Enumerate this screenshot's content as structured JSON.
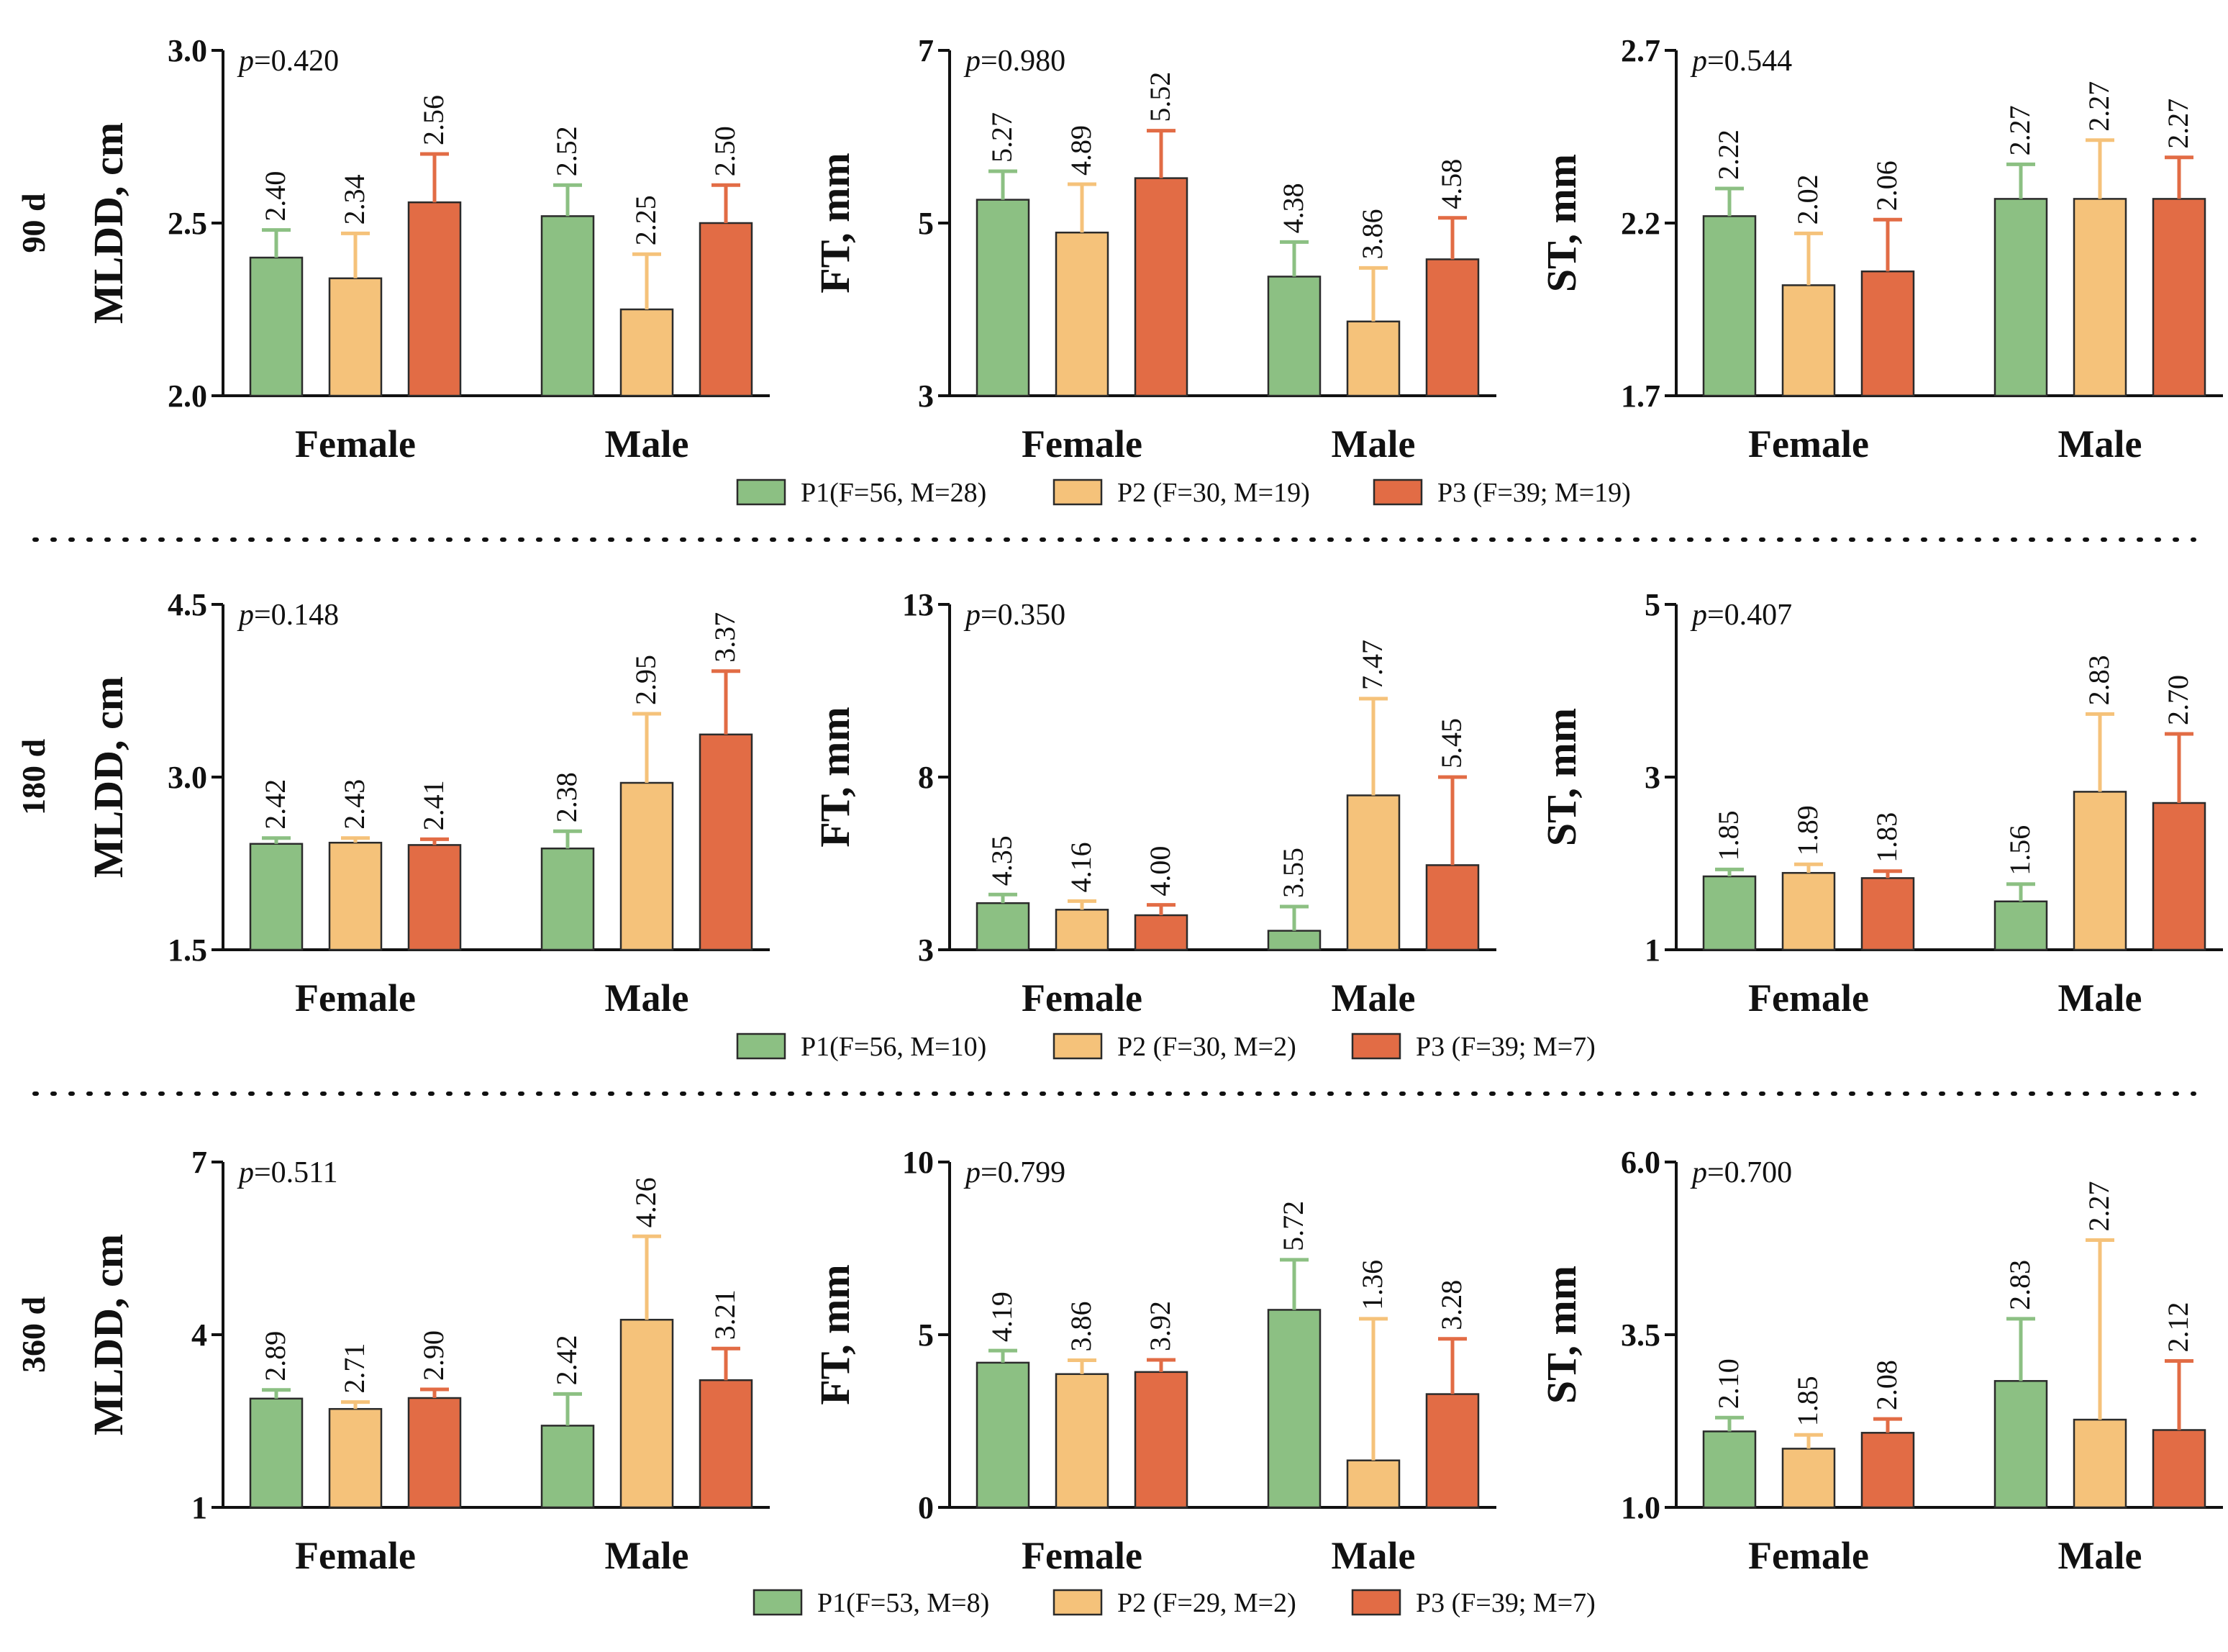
{
  "colors": {
    "P1": "#8cc083",
    "P2": "#f5c27a",
    "P3": "#e26c45",
    "outline": "#2b2b2b"
  },
  "rows": [
    {
      "label": "90 d",
      "legend": [
        "P1(F=56, M=28)",
        "P2 (F=30, M=19)",
        "P3 (F=39; M=19)"
      ]
    },
    {
      "label": "180 d",
      "legend": [
        "P1(F=56, M=10)",
        "P2 (F=30, M=2)",
        "P3 (F=39; M=7)"
      ]
    },
    {
      "label": "360 d",
      "legend": [
        "P1(F=53, M=8)",
        "P2 (F=29, M=2)",
        "P3 (F=39; M=7)"
      ]
    }
  ],
  "chart_data": [
    {
      "type": "bar",
      "row": 0,
      "col": 0,
      "ylabel": "MLDD, cm",
      "p_prefix": "p",
      "p_value": "=0.420",
      "ylim": [
        2.0,
        3.0
      ],
      "yticks": [
        "2.0",
        "2.5",
        "3.0"
      ],
      "categories": [
        "Female",
        "Male"
      ],
      "series": [
        {
          "name": "P1",
          "values": [
            2.4,
            2.52
          ],
          "labels": [
            "2.40",
            "2.52"
          ],
          "err": [
            0.08,
            0.09
          ]
        },
        {
          "name": "P2",
          "values": [
            2.34,
            2.25
          ],
          "labels": [
            "2.34",
            "2.25"
          ],
          "err": [
            0.13,
            0.16
          ]
        },
        {
          "name": "P3",
          "values": [
            2.56,
            2.5
          ],
          "labels": [
            "2.56",
            "2.50"
          ],
          "err": [
            0.14,
            0.11
          ]
        }
      ]
    },
    {
      "type": "bar",
      "row": 0,
      "col": 1,
      "ylabel": "FT, mm",
      "p_prefix": "p",
      "p_value": "=0.980",
      "ylim": [
        3,
        7
      ],
      "yticks": [
        "3",
        "5",
        "7"
      ],
      "categories": [
        "Female",
        "Male"
      ],
      "series": [
        {
          "name": "P1",
          "values": [
            5.27,
            4.38
          ],
          "labels": [
            "5.27",
            "4.38"
          ],
          "err": [
            0.33,
            0.4
          ]
        },
        {
          "name": "P2",
          "values": [
            4.89,
            3.86
          ],
          "labels": [
            "4.89",
            "3.86"
          ],
          "err": [
            0.56,
            0.62
          ]
        },
        {
          "name": "P3",
          "values": [
            5.52,
            4.58
          ],
          "labels": [
            "5.52",
            "4.58"
          ],
          "err": [
            0.55,
            0.48
          ]
        }
      ]
    },
    {
      "type": "bar",
      "row": 0,
      "col": 2,
      "ylabel": "ST, mm",
      "p_prefix": "p",
      "p_value": "=0.544",
      "ylim": [
        1.7,
        2.7
      ],
      "yticks": [
        "1.7",
        "2.2",
        "2.7"
      ],
      "categories": [
        "Female",
        "Male"
      ],
      "series": [
        {
          "name": "P1",
          "values": [
            2.22,
            2.27
          ],
          "labels": [
            "2.22",
            "2.27"
          ],
          "err": [
            0.08,
            0.1
          ]
        },
        {
          "name": "P2",
          "values": [
            2.02,
            2.27
          ],
          "labels": [
            "2.02",
            "2.27"
          ],
          "err": [
            0.15,
            0.17
          ]
        },
        {
          "name": "P3",
          "values": [
            2.06,
            2.27
          ],
          "labels": [
            "2.06",
            "2.27"
          ],
          "err": [
            0.15,
            0.12
          ]
        }
      ]
    },
    {
      "type": "bar",
      "row": 1,
      "col": 0,
      "ylabel": "MLDD, cm",
      "p_prefix": "p",
      "p_value": "=0.148",
      "ylim": [
        1.5,
        4.5
      ],
      "yticks": [
        "1.5",
        "3.0",
        "4.5"
      ],
      "categories": [
        "Female",
        "Male"
      ],
      "series": [
        {
          "name": "P1",
          "values": [
            2.42,
            2.38
          ],
          "labels": [
            "2.42",
            "2.38"
          ],
          "err": [
            0.05,
            0.15
          ]
        },
        {
          "name": "P2",
          "values": [
            2.43,
            2.95
          ],
          "labels": [
            "2.43",
            "2.95"
          ],
          "err": [
            0.04,
            0.6
          ]
        },
        {
          "name": "P3",
          "values": [
            2.41,
            3.37
          ],
          "labels": [
            "2.41",
            "3.37"
          ],
          "err": [
            0.05,
            0.55
          ]
        }
      ]
    },
    {
      "type": "bar",
      "row": 1,
      "col": 1,
      "ylabel": "FT, mm",
      "p_prefix": "p",
      "p_value": "=0.350",
      "ylim": [
        3,
        13
      ],
      "yticks": [
        "3",
        "8",
        "13"
      ],
      "categories": [
        "Female",
        "Male"
      ],
      "series": [
        {
          "name": "P1",
          "values": [
            4.35,
            3.55
          ],
          "labels": [
            "4.35",
            "3.55"
          ],
          "err": [
            0.25,
            0.7
          ]
        },
        {
          "name": "P2",
          "values": [
            4.16,
            7.47
          ],
          "labels": [
            "4.16",
            "7.47"
          ],
          "err": [
            0.25,
            2.8
          ]
        },
        {
          "name": "P3",
          "values": [
            4.0,
            5.45
          ],
          "labels": [
            "4.00",
            "5.45"
          ],
          "err": [
            0.3,
            2.55
          ]
        }
      ]
    },
    {
      "type": "bar",
      "row": 1,
      "col": 2,
      "ylabel": "ST, mm",
      "p_prefix": "p",
      "p_value": "=0.407",
      "ylim": [
        1,
        5
      ],
      "yticks": [
        "1",
        "3",
        "5"
      ],
      "categories": [
        "Female",
        "Male"
      ],
      "series": [
        {
          "name": "P1",
          "values": [
            1.85,
            1.56
          ],
          "labels": [
            "1.85",
            "1.56"
          ],
          "err": [
            0.08,
            0.2
          ]
        },
        {
          "name": "P2",
          "values": [
            1.89,
            2.83
          ],
          "labels": [
            "1.89",
            "2.83"
          ],
          "err": [
            0.1,
            0.9
          ]
        },
        {
          "name": "P3",
          "values": [
            1.83,
            2.7
          ],
          "labels": [
            "1.83",
            "2.70"
          ],
          "err": [
            0.08,
            0.8
          ]
        }
      ]
    },
    {
      "type": "bar",
      "row": 2,
      "col": 0,
      "ylabel": "MLDD, cm",
      "p_prefix": "p",
      "p_value": "=0.511",
      "ylim": [
        1,
        7
      ],
      "yticks": [
        "1",
        "4",
        "7"
      ],
      "categories": [
        "Female",
        "Male"
      ],
      "series": [
        {
          "name": "P1",
          "values": [
            2.89,
            2.42
          ],
          "labels": [
            "2.89",
            "2.42"
          ],
          "err": [
            0.15,
            0.55
          ]
        },
        {
          "name": "P2",
          "values": [
            2.71,
            4.26
          ],
          "labels": [
            "2.71",
            "4.26"
          ],
          "err": [
            0.12,
            1.45
          ]
        },
        {
          "name": "P3",
          "values": [
            2.9,
            3.21
          ],
          "labels": [
            "2.90",
            "3.21"
          ],
          "err": [
            0.15,
            0.55
          ]
        }
      ]
    },
    {
      "type": "bar",
      "row": 2,
      "col": 1,
      "ylabel": "FT, mm",
      "p_prefix": "p",
      "p_value": "=0.799",
      "ylim": [
        0,
        10
      ],
      "yticks": [
        "0",
        "5",
        "10"
      ],
      "categories": [
        "Female",
        "Male"
      ],
      "series": [
        {
          "name": "P1",
          "values": [
            4.19,
            5.72
          ],
          "labels": [
            "4.19",
            "5.72"
          ],
          "err": [
            0.35,
            1.45
          ]
        },
        {
          "name": "P2",
          "values": [
            3.86,
            1.36
          ],
          "labels": [
            "3.86",
            "1.36"
          ],
          "err": [
            0.4,
            4.1
          ]
        },
        {
          "name": "P3",
          "values": [
            3.92,
            3.28
          ],
          "labels": [
            "3.92",
            "3.28"
          ],
          "err": [
            0.35,
            1.6
          ]
        }
      ]
    },
    {
      "type": "bar",
      "row": 2,
      "col": 2,
      "ylabel": "ST, mm",
      "p_prefix": "p",
      "p_value": "=0.700",
      "ylim": [
        1.0,
        6.0
      ],
      "yticks": [
        "1.0",
        "3.5",
        "6.0"
      ],
      "categories": [
        "Female",
        "Male"
      ],
      "series": [
        {
          "name": "P1",
          "values": [
            2.1,
            2.83
          ],
          "labels": [
            "2.10",
            "2.83"
          ],
          "err": [
            0.2,
            0.9
          ]
        },
        {
          "name": "P2",
          "values": [
            1.85,
            2.27
          ],
          "labels": [
            "1.85",
            "2.27"
          ],
          "err": [
            0.2,
            2.6
          ]
        },
        {
          "name": "P3",
          "values": [
            2.08,
            2.12
          ],
          "labels": [
            "2.08",
            "2.12"
          ],
          "err": [
            0.2,
            1.0
          ]
        }
      ]
    }
  ]
}
